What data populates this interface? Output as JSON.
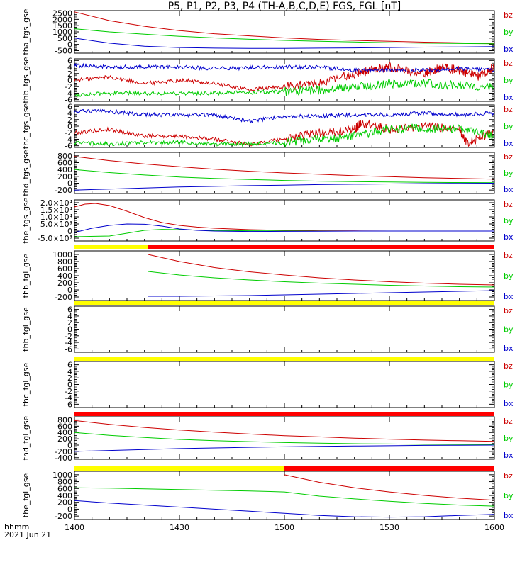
{
  "title": "P5, P1, P2, P3, P4 (TH-A,B,C,D,E) FGS, FGL [nT]",
  "footer": {
    "time_label": "hhmm",
    "date_label": "2021 Jun 21"
  },
  "x_axis": {
    "range": [
      0,
      120
    ],
    "ticks": [
      0,
      30,
      60,
      90,
      120
    ],
    "tick_labels": [
      "1400",
      "1430",
      "1500",
      "1530",
      "1600"
    ]
  },
  "colors": {
    "bx": "#0000cc",
    "by": "#00cc00",
    "bz": "#cc0000",
    "flag_yellow": "#ffff00",
    "flag_red": "#ff0000",
    "axis": "#000000"
  },
  "chart_data": [
    {
      "type": "line",
      "panel": "tha_fgs_gse",
      "ylabel": "tha_fgs_gse",
      "yticks": [
        2500,
        2000,
        1500,
        1000,
        500,
        0,
        -500
      ],
      "ytick_labels": [
        "2500",
        "2000",
        "1500",
        "1000",
        "500",
        "0",
        "-500"
      ],
      "ylim": [
        -700,
        2700
      ],
      "series": [
        {
          "name": "bz",
          "x": [
            0,
            10,
            20,
            30,
            40,
            50,
            60,
            70,
            80,
            90,
            100,
            110,
            120
          ],
          "values": [
            2600,
            1900,
            1450,
            1100,
            850,
            680,
            520,
            400,
            320,
            250,
            180,
            130,
            90
          ]
        },
        {
          "name": "by",
          "x": [
            0,
            10,
            20,
            30,
            40,
            50,
            60,
            70,
            80,
            90,
            100,
            110,
            120
          ],
          "values": [
            1250,
            1000,
            820,
            650,
            520,
            410,
            320,
            250,
            190,
            140,
            100,
            70,
            50
          ]
        },
        {
          "name": "bx",
          "x": [
            0,
            10,
            20,
            30,
            40,
            50,
            60,
            70,
            80,
            90,
            100,
            110,
            120
          ],
          "values": [
            500,
            100,
            -150,
            -250,
            -300,
            -320,
            -320,
            -300,
            -280,
            -250,
            -220,
            -200,
            -180
          ]
        }
      ]
    },
    {
      "type": "line",
      "panel": "thb_fgs_gse",
      "ylabel": "thb_fgs_gse",
      "yticks": [
        6,
        4,
        2,
        0,
        -2,
        -4,
        -6
      ],
      "ytick_labels": [
        "6",
        "4",
        "2",
        "0",
        "-2",
        "-4",
        "-6"
      ],
      "ylim": [
        -6.5,
        6.5
      ],
      "series": [
        {
          "name": "bz",
          "x": [
            0,
            10,
            20,
            30,
            40,
            50,
            60,
            70,
            80,
            85,
            90,
            100,
            105,
            110,
            115,
            120
          ],
          "values": [
            0,
            1,
            -1,
            0,
            -1,
            -3,
            -2,
            -1,
            2,
            3,
            4,
            2,
            4,
            3,
            1,
            4
          ]
        },
        {
          "name": "by",
          "x": [
            0,
            10,
            20,
            30,
            40,
            50,
            60,
            70,
            80,
            90,
            100,
            110,
            120
          ],
          "values": [
            -4.5,
            -4,
            -4,
            -4,
            -4,
            -3.8,
            -3.5,
            -3,
            -2,
            -1,
            -1,
            -1.5,
            -2
          ]
        },
        {
          "name": "bx",
          "x": [
            0,
            10,
            20,
            30,
            40,
            50,
            60,
            70,
            80,
            90,
            100,
            110,
            120
          ],
          "values": [
            4.5,
            4,
            4,
            4,
            3.5,
            3.8,
            4,
            4,
            3,
            3,
            3,
            3.5,
            3
          ]
        }
      ]
    },
    {
      "type": "line",
      "panel": "thc_fgs_gse",
      "ylabel": "thc_fgs_gse",
      "yticks": [
        6,
        4,
        2,
        0,
        -2,
        -4,
        -6
      ],
      "ytick_labels": [
        "6",
        "4",
        "2",
        "0",
        "-2",
        "-4",
        "-6"
      ],
      "ylim": [
        -6.5,
        6.5
      ],
      "series": [
        {
          "name": "bz",
          "x": [
            0,
            10,
            20,
            30,
            40,
            50,
            60,
            70,
            80,
            82,
            90,
            100,
            110,
            112,
            120
          ],
          "values": [
            -2,
            -1,
            -3,
            -3,
            -4,
            -5.5,
            -4,
            -2,
            -1,
            1,
            -1,
            0,
            -1,
            -5,
            -2
          ]
        },
        {
          "name": "by",
          "x": [
            0,
            10,
            20,
            30,
            40,
            50,
            60,
            70,
            80,
            90,
            100,
            110,
            120
          ],
          "values": [
            -5,
            -5.5,
            -5,
            -5,
            -5.5,
            -5.5,
            -5,
            -4,
            -3,
            -1,
            -0.5,
            -1,
            -3
          ]
        },
        {
          "name": "bx",
          "x": [
            0,
            10,
            20,
            30,
            40,
            50,
            60,
            70,
            80,
            90,
            100,
            110,
            120
          ],
          "values": [
            4.5,
            4.5,
            3.5,
            3.5,
            3.5,
            1.5,
            3,
            3,
            3.5,
            3.5,
            4,
            3.5,
            4
          ]
        }
      ]
    },
    {
      "type": "line",
      "panel": "thd_fgs_gse",
      "ylabel": "thd_fgs_gse",
      "yticks": [
        800,
        600,
        400,
        200,
        0,
        -200
      ],
      "ytick_labels": [
        "800",
        "600",
        "400",
        "200",
        "0",
        "-200"
      ],
      "ylim": [
        -300,
        900
      ],
      "series": [
        {
          "name": "bz",
          "x": [
            0,
            10,
            20,
            30,
            40,
            50,
            60,
            70,
            80,
            90,
            100,
            110,
            120
          ],
          "values": [
            780,
            660,
            560,
            480,
            410,
            350,
            300,
            260,
            220,
            190,
            160,
            140,
            120
          ]
        },
        {
          "name": "by",
          "x": [
            0,
            10,
            20,
            30,
            40,
            50,
            60,
            70,
            80,
            90,
            100,
            110,
            120
          ],
          "values": [
            400,
            310,
            240,
            180,
            140,
            110,
            80,
            60,
            45,
            35,
            25,
            20,
            15
          ]
        },
        {
          "name": "bx",
          "x": [
            0,
            10,
            20,
            30,
            40,
            50,
            60,
            70,
            80,
            90,
            100,
            110,
            120
          ],
          "values": [
            -200,
            -170,
            -140,
            -110,
            -90,
            -70,
            -55,
            -40,
            -30,
            -20,
            -10,
            -5,
            0
          ]
        }
      ]
    },
    {
      "type": "line",
      "panel": "the_fgs_gse",
      "ylabel": "the_fgs_gse",
      "yticks": [
        20000,
        15000,
        10000,
        5000,
        0,
        -5000
      ],
      "ytick_labels": [
        "2.0×10⁴",
        "1.5×10⁴",
        "1.0×10⁴",
        "5.0×10³",
        "0",
        "-5.0×10³"
      ],
      "ylim": [
        -7000,
        22000
      ],
      "series": [
        {
          "name": "bz",
          "x": [
            0,
            3,
            6,
            10,
            15,
            20,
            25,
            30,
            35,
            40,
            50,
            60,
            70,
            80,
            90,
            100,
            110,
            120
          ],
          "values": [
            17000,
            19000,
            19500,
            18000,
            14000,
            9500,
            6000,
            4000,
            2800,
            2000,
            1000,
            500,
            200,
            100,
            0,
            0,
            0,
            0
          ]
        },
        {
          "name": "by",
          "x": [
            0,
            10,
            15,
            20,
            25,
            30,
            40,
            50,
            60,
            70,
            80,
            90,
            100,
            110,
            120
          ],
          "values": [
            -4000,
            -3500,
            -1500,
            500,
            1200,
            1000,
            400,
            200,
            100,
            0,
            0,
            0,
            0,
            0,
            0
          ]
        },
        {
          "name": "bx",
          "x": [
            0,
            5,
            10,
            15,
            20,
            25,
            30,
            35,
            40,
            50,
            60,
            70,
            80,
            90,
            100,
            110,
            120
          ],
          "values": [
            -1000,
            2000,
            4000,
            5000,
            4800,
            3500,
            1500,
            500,
            0,
            -300,
            -200,
            -100,
            0,
            0,
            0,
            0,
            0
          ]
        }
      ]
    },
    {
      "type": "line",
      "panel": "thb_fgl_gse",
      "ylabel": "thb_fgl_gse",
      "yticks": [
        1000,
        800,
        600,
        400,
        200,
        0,
        -200
      ],
      "ytick_labels": [
        "1000",
        "800",
        "600",
        "400",
        "200",
        "0",
        "-200"
      ],
      "ylim": [
        -300,
        1100
      ],
      "series": [
        {
          "name": "bz",
          "x": [
            21,
            30,
            40,
            50,
            60,
            70,
            80,
            90,
            100,
            110,
            120
          ],
          "values": [
            1000,
            800,
            630,
            510,
            420,
            340,
            280,
            230,
            190,
            160,
            140
          ]
        },
        {
          "name": "by",
          "x": [
            21,
            30,
            40,
            50,
            60,
            70,
            80,
            90,
            100,
            110,
            120
          ],
          "values": [
            520,
            420,
            340,
            280,
            230,
            190,
            160,
            130,
            110,
            90,
            80
          ]
        },
        {
          "name": "bx",
          "x": [
            21,
            30,
            40,
            50,
            60,
            70,
            80,
            90,
            100,
            110,
            120
          ],
          "values": [
            -180,
            -180,
            -170,
            -160,
            -140,
            -120,
            -100,
            -80,
            -60,
            -40,
            -20
          ]
        }
      ]
    },
    {
      "type": "line",
      "panel": "thb_fgl_gse_2",
      "ylabel": "thb_fgl_gse",
      "yticks": [
        6,
        4,
        2,
        0,
        -2,
        -4,
        -6
      ],
      "ytick_labels": [
        "6",
        "4",
        "2",
        "0",
        "-2",
        "-4",
        "-6"
      ],
      "ylim": [
        -7,
        7
      ],
      "series": []
    },
    {
      "type": "line",
      "panel": "thc_fgl_gse",
      "ylabel": "thc_fgl_gse",
      "yticks": [
        6,
        4,
        2,
        0,
        -2,
        -4,
        -6
      ],
      "ytick_labels": [
        "6",
        "4",
        "2",
        "0",
        "-2",
        "-4",
        "-6"
      ],
      "ylim": [
        -7,
        7
      ],
      "series": []
    },
    {
      "type": "line",
      "panel": "thd_fgl_gse",
      "ylabel": "thd_fgl_gse",
      "yticks": [
        800,
        600,
        400,
        200,
        0,
        -200,
        -400
      ],
      "ytick_labels": [
        "800",
        "600",
        "400",
        "200",
        "0",
        "-200",
        "-400"
      ],
      "ylim": [
        -450,
        900
      ],
      "series": [
        {
          "name": "bz",
          "x": [
            0,
            10,
            20,
            30,
            40,
            50,
            60,
            70,
            80,
            90,
            100,
            110,
            120
          ],
          "values": [
            780,
            660,
            560,
            480,
            410,
            350,
            300,
            260,
            220,
            190,
            160,
            140,
            120
          ]
        },
        {
          "name": "by",
          "x": [
            0,
            10,
            20,
            30,
            40,
            50,
            60,
            70,
            80,
            90,
            100,
            110,
            120
          ],
          "values": [
            400,
            310,
            240,
            180,
            140,
            110,
            80,
            60,
            45,
            35,
            25,
            20,
            15
          ]
        },
        {
          "name": "bx",
          "x": [
            0,
            10,
            20,
            30,
            40,
            50,
            60,
            70,
            80,
            90,
            100,
            110,
            120
          ],
          "values": [
            -200,
            -170,
            -140,
            -110,
            -90,
            -70,
            -55,
            -40,
            -30,
            -20,
            -10,
            -5,
            0
          ]
        }
      ]
    },
    {
      "type": "line",
      "panel": "the_fgl_gse",
      "ylabel": "the_fgl_gse",
      "yticks": [
        1000,
        800,
        600,
        400,
        200,
        0,
        -200
      ],
      "ytick_labels": [
        "1000",
        "800",
        "600",
        "400",
        "200",
        "0",
        "-200"
      ],
      "ylim": [
        -300,
        1100
      ],
      "series": [
        {
          "name": "bz",
          "x": [
            60,
            70,
            80,
            90,
            100,
            110,
            120
          ],
          "values": [
            1000,
            780,
            620,
            500,
            400,
            320,
            260
          ]
        },
        {
          "name": "by",
          "x": [
            0,
            10,
            20,
            30,
            40,
            50,
            60,
            70,
            80,
            90,
            100,
            110,
            120
          ],
          "values": [
            620,
            610,
            590,
            570,
            550,
            530,
            500,
            380,
            300,
            230,
            170,
            120,
            90
          ]
        },
        {
          "name": "bx",
          "x": [
            0,
            10,
            20,
            30,
            40,
            50,
            60,
            70,
            80,
            90,
            100,
            110,
            120
          ],
          "values": [
            250,
            180,
            120,
            60,
            0,
            -60,
            -120,
            -180,
            -220,
            -230,
            -220,
            -180,
            -150
          ]
        }
      ]
    }
  ],
  "flag_bars": [
    {
      "after_panel": 4,
      "segments": [
        {
          "from": 0,
          "to": 21,
          "color": "yellow"
        },
        {
          "from": 21,
          "to": 120,
          "color": "red"
        }
      ]
    },
    {
      "after_panel": 5,
      "segments": [
        {
          "from": 0,
          "to": 120,
          "color": "yellow"
        }
      ]
    },
    {
      "after_panel": 6,
      "segments": [
        {
          "from": 0,
          "to": 120,
          "color": "yellow"
        }
      ]
    },
    {
      "after_panel": 7,
      "segments": [
        {
          "from": 0,
          "to": 120,
          "color": "red"
        }
      ]
    },
    {
      "after_panel": 8,
      "segments": [
        {
          "from": 0,
          "to": 60,
          "color": "yellow"
        },
        {
          "from": 60,
          "to": 120,
          "color": "red"
        }
      ]
    }
  ]
}
